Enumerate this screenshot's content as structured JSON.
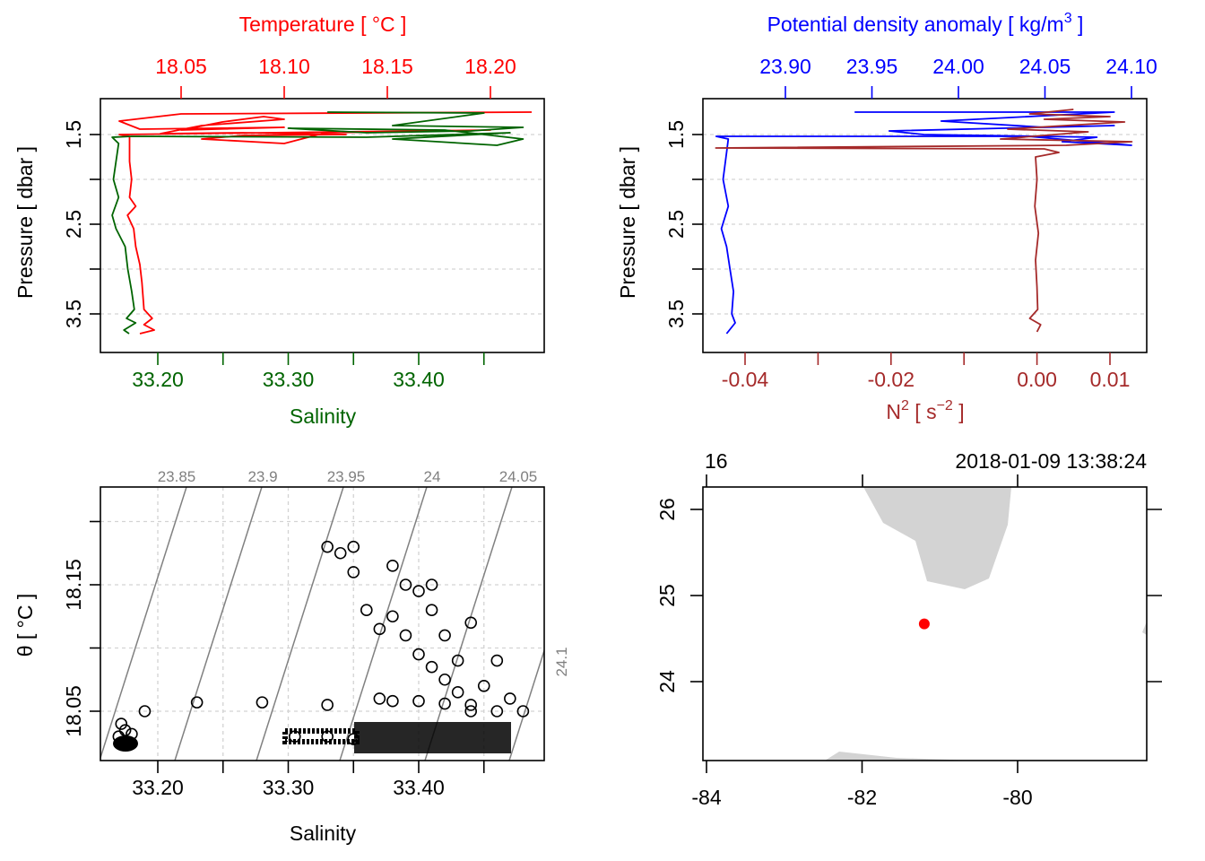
{
  "chart_data": [
    {
      "id": "profile-ts",
      "type": "line",
      "title": "",
      "top_axis": {
        "label": "Temperature [ °C ]",
        "color": "#ff0000",
        "ticks": [
          18.05,
          18.1,
          18.15,
          18.2
        ],
        "tick_labels": [
          "18.05",
          "18.10",
          "18.15",
          "18.20"
        ]
      },
      "bottom_axis": {
        "label": "Salinity",
        "color": "#006400",
        "ticks": [
          33.2,
          33.25,
          33.3,
          33.35,
          33.4,
          33.45
        ],
        "tick_labels": [
          "33.20",
          "",
          "33.30",
          "",
          "33.40",
          ""
        ]
      },
      "left_axis": {
        "label": "Pressure [ dbar ]",
        "ticks": [
          1.5,
          2.0,
          2.5,
          3.0,
          3.5
        ],
        "tick_labels": [
          "1.5",
          "",
          "2.5",
          "",
          "3.5"
        ],
        "reversed": true
      },
      "ylim": [
        3.85,
        1.1
      ],
      "xlim_temperature": [
        18.03,
        18.22
      ],
      "xlim_salinity": [
        33.155,
        33.495
      ],
      "grid": true,
      "series": [
        {
          "name": "Temperature",
          "color": "#ff0000",
          "points": [
            [
              18.22,
              1.25
            ],
            [
              18.05,
              1.27
            ],
            [
              18.02,
              1.35
            ],
            [
              18.03,
              1.44
            ],
            [
              18.1,
              1.42
            ],
            [
              18.05,
              1.45
            ],
            [
              18.07,
              1.36
            ],
            [
              18.09,
              1.3
            ],
            [
              18.1,
              1.33
            ],
            [
              18.06,
              1.4
            ],
            [
              18.04,
              1.49
            ],
            [
              18.08,
              1.48
            ],
            [
              18.13,
              1.5
            ],
            [
              18.08,
              1.51
            ],
            [
              18.06,
              1.55
            ],
            [
              18.1,
              1.6
            ],
            [
              18.12,
              1.48
            ],
            [
              18.2,
              1.45
            ],
            [
              18.02,
              1.5
            ],
            [
              18.025,
              1.52
            ],
            [
              18.025,
              1.65
            ],
            [
              18.025,
              1.8
            ],
            [
              18.026,
              2.0
            ],
            [
              18.025,
              2.2
            ],
            [
              18.028,
              2.3
            ],
            [
              18.024,
              2.4
            ],
            [
              18.027,
              2.55
            ],
            [
              18.028,
              2.75
            ],
            [
              18.03,
              2.95
            ],
            [
              18.031,
              3.15
            ],
            [
              18.032,
              3.45
            ],
            [
              18.036,
              3.55
            ],
            [
              18.032,
              3.62
            ],
            [
              18.037,
              3.68
            ],
            [
              18.03,
              3.72
            ]
          ]
        },
        {
          "name": "Salinity",
          "color": "#006400",
          "points": [
            [
              33.33,
              1.25
            ],
            [
              33.45,
              1.26
            ],
            [
              33.38,
              1.4
            ],
            [
              33.48,
              1.42
            ],
            [
              33.44,
              1.46
            ],
            [
              33.36,
              1.48
            ],
            [
              33.3,
              1.43
            ],
            [
              33.42,
              1.45
            ],
            [
              33.48,
              1.55
            ],
            [
              33.46,
              1.62
            ],
            [
              33.38,
              1.55
            ],
            [
              33.47,
              1.48
            ],
            [
              33.36,
              1.53
            ],
            [
              33.18,
              1.52
            ],
            [
              33.165,
              1.53
            ],
            [
              33.17,
              1.6
            ],
            [
              33.168,
              1.8
            ],
            [
              33.166,
              2.0
            ],
            [
              33.17,
              2.2
            ],
            [
              33.165,
              2.4
            ],
            [
              33.168,
              2.55
            ],
            [
              33.175,
              2.75
            ],
            [
              33.177,
              3.0
            ],
            [
              33.18,
              3.25
            ],
            [
              33.182,
              3.45
            ],
            [
              33.176,
              3.55
            ],
            [
              33.183,
              3.6
            ],
            [
              33.174,
              3.68
            ],
            [
              33.178,
              3.72
            ]
          ]
        }
      ]
    },
    {
      "id": "profile-density-n2",
      "type": "line",
      "title": "",
      "top_axis": {
        "label": "Potential density anomaly [ kg/m³ ]",
        "color": "#0000ff",
        "ticks": [
          23.9,
          23.95,
          24.0,
          24.05,
          24.1
        ],
        "tick_labels": [
          "23.90",
          "23.95",
          "24.00",
          "24.05",
          "24.10"
        ]
      },
      "bottom_axis": {
        "label": "N² [ s⁻² ]",
        "color": "#a52a2a",
        "ticks": [
          -0.04,
          -0.03,
          -0.02,
          -0.01,
          0.0,
          0.01
        ],
        "tick_labels": [
          "-0.04",
          "",
          "-0.02",
          "",
          "0.00",
          "0.01"
        ]
      },
      "left_axis": {
        "label": "Pressure [ dbar ]",
        "ticks": [
          1.5,
          2.0,
          2.5,
          3.0,
          3.5
        ],
        "tick_labels": [
          "1.5",
          "",
          "2.5",
          "",
          "3.5"
        ],
        "reversed": true
      },
      "ylim": [
        3.85,
        1.1
      ],
      "grid": true,
      "series": [
        {
          "name": "Potential density anomaly",
          "color": "#0000ff",
          "points": [
            [
              23.94,
              1.25
            ],
            [
              24.09,
              1.25
            ],
            [
              23.99,
              1.35
            ],
            [
              24.05,
              1.42
            ],
            [
              24.09,
              1.4
            ],
            [
              23.96,
              1.46
            ],
            [
              23.98,
              1.5
            ],
            [
              24.08,
              1.53
            ],
            [
              24.06,
              1.58
            ],
            [
              24.1,
              1.62
            ],
            [
              24.04,
              1.52
            ],
            [
              23.86,
              1.52
            ],
            [
              23.867,
              1.55
            ],
            [
              23.866,
              1.7
            ],
            [
              23.864,
              2.0
            ],
            [
              23.867,
              2.3
            ],
            [
              23.863,
              2.55
            ],
            [
              23.866,
              2.75
            ],
            [
              23.868,
              3.0
            ],
            [
              23.87,
              3.25
            ],
            [
              23.869,
              3.5
            ],
            [
              23.871,
              3.6
            ],
            [
              23.866,
              3.72
            ]
          ]
        },
        {
          "name": "N²",
          "color": "#a52a2a",
          "points": [
            [
              0.005,
              1.22
            ],
            [
              -0.001,
              1.27
            ],
            [
              0.01,
              1.3
            ],
            [
              0.001,
              1.33
            ],
            [
              0.012,
              1.36
            ],
            [
              -0.004,
              1.44
            ],
            [
              0.007,
              1.47
            ],
            [
              -0.005,
              1.55
            ],
            [
              0.013,
              1.58
            ],
            [
              0.004,
              1.62
            ],
            [
              -0.044,
              1.65
            ],
            [
              0.001,
              1.66
            ],
            [
              0.003,
              1.7
            ],
            [
              -0.0002,
              1.75
            ],
            [
              0.0,
              2.0
            ],
            [
              -0.0003,
              2.3
            ],
            [
              0.0002,
              2.6
            ],
            [
              -0.0002,
              2.9
            ],
            [
              0.0,
              3.2
            ],
            [
              0.0001,
              3.45
            ],
            [
              -0.001,
              3.55
            ],
            [
              0.0005,
              3.62
            ],
            [
              0.0,
              3.7
            ]
          ]
        }
      ]
    },
    {
      "id": "ts-diagram",
      "type": "scatter",
      "title": "",
      "xlabel": "Salinity",
      "ylabel": "θ [ °C ]",
      "xlim": [
        33.155,
        33.495
      ],
      "ylim": [
        18.015,
        18.19
      ],
      "x_ticks": [
        33.2,
        33.25,
        33.3,
        33.35,
        33.4,
        33.45
      ],
      "x_tick_labels": [
        "33.20",
        "",
        "33.30",
        "",
        "33.40",
        ""
      ],
      "y_ticks": [
        18.05,
        18.1,
        18.15,
        18.2
      ],
      "y_tick_labels": [
        "18.05",
        "",
        "18.15",
        ""
      ],
      "grid": true,
      "isopycnals": {
        "color": "#808080",
        "labels": [
          "23.85",
          "23.9",
          "23.95",
          "24",
          "24.05",
          "24.1"
        ]
      },
      "points": [
        [
          33.17,
          18.03
        ],
        [
          33.175,
          18.035
        ],
        [
          33.18,
          18.032
        ],
        [
          33.172,
          18.04
        ],
        [
          33.19,
          18.05
        ],
        [
          33.23,
          18.057
        ],
        [
          33.28,
          18.057
        ],
        [
          33.33,
          18.055
        ],
        [
          33.305,
          18.03
        ],
        [
          33.33,
          18.03
        ],
        [
          33.35,
          18.028
        ],
        [
          33.33,
          18.18
        ],
        [
          33.34,
          18.175
        ],
        [
          33.35,
          18.18
        ],
        [
          33.35,
          18.16
        ],
        [
          33.36,
          18.13
        ],
        [
          33.37,
          18.115
        ],
        [
          33.38,
          18.125
        ],
        [
          33.39,
          18.11
        ],
        [
          33.4,
          18.095
        ],
        [
          33.41,
          18.085
        ],
        [
          33.42,
          18.075
        ],
        [
          33.43,
          18.065
        ],
        [
          33.44,
          18.055
        ],
        [
          33.46,
          18.05
        ],
        [
          33.48,
          18.05
        ],
        [
          33.39,
          18.15
        ],
        [
          33.4,
          18.145
        ],
        [
          33.41,
          18.13
        ],
        [
          33.42,
          18.11
        ],
        [
          33.43,
          18.09
        ],
        [
          33.45,
          18.07
        ],
        [
          33.47,
          18.06
        ],
        [
          33.37,
          18.06
        ],
        [
          33.38,
          18.058
        ],
        [
          33.4,
          18.058
        ],
        [
          33.42,
          18.056
        ],
        [
          33.44,
          18.05
        ],
        [
          33.38,
          18.165
        ],
        [
          33.41,
          18.15
        ],
        [
          33.44,
          18.12
        ],
        [
          33.46,
          18.09
        ]
      ]
    },
    {
      "id": "station-map",
      "type": "scatter",
      "title": "",
      "top_labels": [
        "16",
        "2018-01-09 13:38:24"
      ],
      "x_ticks": [
        -84,
        -82,
        -80
      ],
      "x_tick_labels": [
        "-84",
        "-82",
        "-80"
      ],
      "y_ticks": [
        24,
        25,
        26
      ],
      "y_tick_labels": [
        "24",
        "25",
        "26"
      ],
      "xlim": [
        -84.05,
        -78.35
      ],
      "ylim": [
        23.15,
        26.25
      ],
      "land_color": "#d3d3d3",
      "station": {
        "lon": -81.2,
        "lat": 24.67,
        "color": "#ff0000"
      }
    }
  ]
}
